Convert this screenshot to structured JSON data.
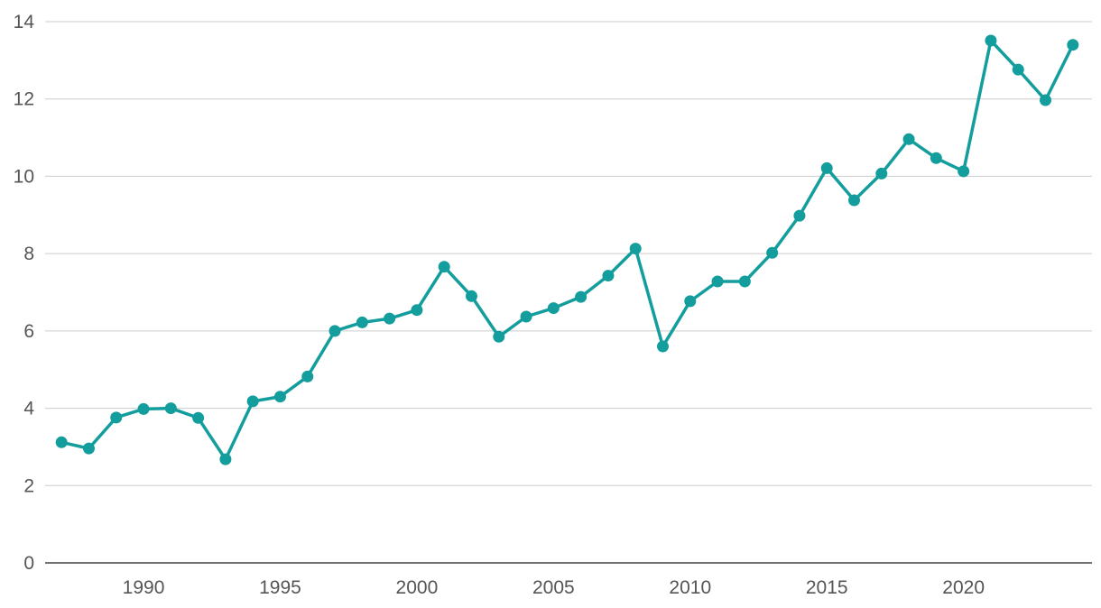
{
  "chart_data": {
    "type": "line",
    "title": "",
    "xlabel": "",
    "ylabel": "",
    "x": [
      1987,
      1988,
      1989,
      1990,
      1991,
      1992,
      1993,
      1994,
      1995,
      1996,
      1997,
      1998,
      1999,
      2000,
      2001,
      2002,
      2003,
      2004,
      2005,
      2006,
      2007,
      2008,
      2009,
      2010,
      2011,
      2012,
      2013,
      2014,
      2015,
      2016,
      2017,
      2018,
      2019,
      2020,
      2021,
      2022,
      2023,
      2024
    ],
    "series": [
      {
        "values": [
          3.12,
          2.96,
          3.76,
          3.98,
          4.0,
          3.75,
          2.68,
          4.18,
          4.3,
          4.82,
          6.0,
          6.22,
          6.32,
          6.54,
          7.66,
          6.9,
          5.85,
          6.37,
          6.59,
          6.88,
          7.43,
          8.13,
          5.6,
          6.77,
          7.28,
          7.28,
          8.02,
          8.98,
          10.21,
          9.38,
          10.07,
          10.96,
          10.47,
          10.13,
          13.51,
          12.76,
          11.97,
          13.4
        ],
        "color": "#139d9d"
      }
    ],
    "xticks": [
      "1990",
      "1995",
      "2000",
      "2005",
      "2010",
      "2015",
      "2020"
    ],
    "yticks": [
      "0",
      "2",
      "4",
      "6",
      "8",
      "10",
      "12",
      "14"
    ],
    "xlim": [
      1986.4,
      2024.7
    ],
    "ylim": [
      0,
      14
    ],
    "grid": true,
    "legend": "none"
  }
}
